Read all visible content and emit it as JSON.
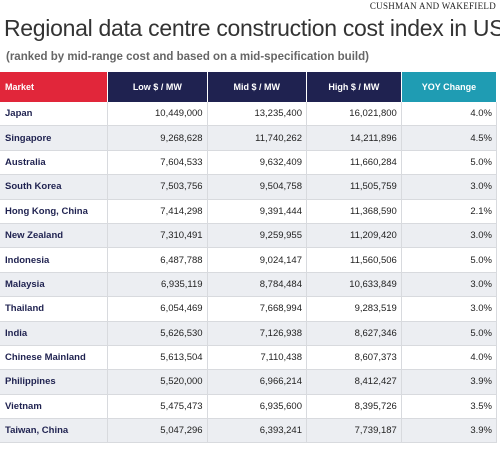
{
  "header": {
    "source": "CUSHMAN AND WAKEFIELD",
    "title": "Regional data centre construction cost index in US$",
    "subtitle": "(ranked by mid-range cost and based on a mid-specification build)"
  },
  "table": {
    "columns": [
      "Market",
      "Low $ / MW",
      "Mid $ / MW",
      "High $ / MW",
      "YOY Change"
    ],
    "rows": [
      [
        "Japan",
        "10,449,000",
        "13,235,400",
        "16,021,800",
        "4.0%"
      ],
      [
        "Singapore",
        "9,268,628",
        "11,740,262",
        "14,211,896",
        "4.5%"
      ],
      [
        "Australia",
        "7,604,533",
        "9,632,409",
        "11,660,284",
        "5.0%"
      ],
      [
        "South Korea",
        "7,503,756",
        "9,504,758",
        "11,505,759",
        "3.0%"
      ],
      [
        "Hong Kong, China",
        "7,414,298",
        "9,391,444",
        "11,368,590",
        "2.1%"
      ],
      [
        "New Zealand",
        "7,310,491",
        "9,259,955",
        "11,209,420",
        "3.0%"
      ],
      [
        "Indonesia",
        "6,487,788",
        "9,024,147",
        "11,560,506",
        "5.0%"
      ],
      [
        "Malaysia",
        "6,935,119",
        "8,784,484",
        "10,633,849",
        "3.0%"
      ],
      [
        "Thailand",
        "6,054,469",
        "7,668,994",
        "9,283,519",
        "3.0%"
      ],
      [
        "India",
        "5,626,530",
        "7,126,938",
        "8,627,346",
        "5.0%"
      ],
      [
        "Chinese Mainland",
        "5,613,504",
        "7,110,438",
        "8,607,373",
        "4.0%"
      ],
      [
        "Philippines",
        "5,520,000",
        "6,966,214",
        "8,412,427",
        "3.9%"
      ],
      [
        "Vietnam",
        "5,475,473",
        "6,935,600",
        "8,395,726",
        "3.5%"
      ],
      [
        "Taiwan, China",
        "5,047,296",
        "6,393,241",
        "7,739,187",
        "3.9%"
      ]
    ]
  }
}
